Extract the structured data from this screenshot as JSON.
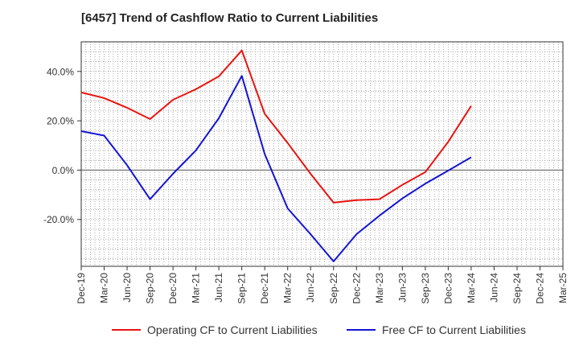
{
  "chart_data": {
    "type": "line",
    "title": "[6457]  Trend of Cashflow Ratio to Current Liabilities",
    "xlabel": "",
    "ylabel": "",
    "categories": [
      "Dec-19",
      "Mar-20",
      "Jun-20",
      "Sep-20",
      "Dec-20",
      "Mar-21",
      "Jun-21",
      "Sep-21",
      "Dec-21",
      "Mar-22",
      "Jun-22",
      "Sep-22",
      "Dec-22",
      "Mar-23",
      "Jun-23",
      "Sep-23",
      "Dec-23",
      "Mar-24",
      "Jun-24",
      "Sep-24",
      "Dec-24",
      "Mar-25"
    ],
    "ylim": [
      -39,
      52
    ],
    "yticks": [
      40,
      20,
      0,
      -20
    ],
    "ytick_labels": [
      "40.0%",
      "20.0%",
      "0.0%",
      "-20.0%"
    ],
    "grid": true,
    "legend_position": "bottom-center",
    "series": [
      {
        "name": "Operating CF to Current Liabilities",
        "color": "#e8140f",
        "values": [
          31.5,
          29.2,
          25.3,
          20.7,
          28.5,
          32.8,
          38.0,
          48.5,
          22.8,
          11.0,
          -1.5,
          -13.2,
          -12.2,
          -11.8,
          -6.0,
          -0.8,
          11.5,
          26.0,
          null,
          null,
          null,
          null
        ]
      },
      {
        "name": "Free CF to Current Liabilities",
        "color": "#1414d2",
        "values": [
          15.8,
          14.0,
          2.0,
          -11.8,
          -1.5,
          8.0,
          21.0,
          38.2,
          6.5,
          -15.5,
          -26.0,
          -37.0,
          -26.0,
          -18.5,
          -11.5,
          -5.5,
          -0.2,
          5.2,
          null,
          null,
          null,
          null
        ]
      }
    ]
  }
}
